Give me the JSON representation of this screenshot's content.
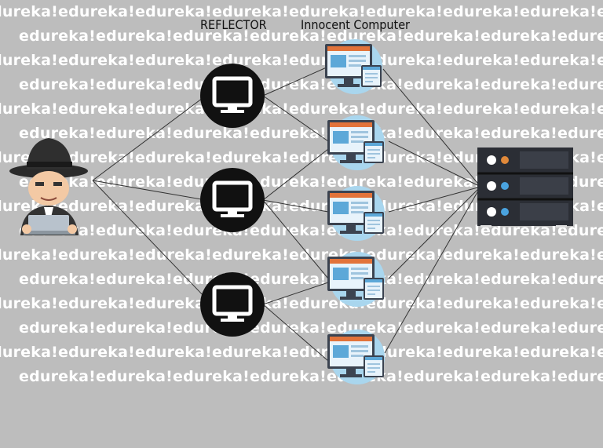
{
  "labels": {
    "reflector": "REFLECTOR",
    "innocent_computer": "Innocent Computer"
  },
  "watermark": {
    "text": "edureka!"
  },
  "colors": {
    "background": "#bdbdbd",
    "watermark": "#ffffff",
    "reflector_circle": "#111111",
    "innocent_disc": "#a9d6ee",
    "server_body": "#2b2e35",
    "link_line": "#333333"
  },
  "icons": {
    "attacker": "hacker-icon",
    "reflector": "monitor-icon",
    "innocent": "desktop-computer-icon",
    "target": "server-icon"
  }
}
